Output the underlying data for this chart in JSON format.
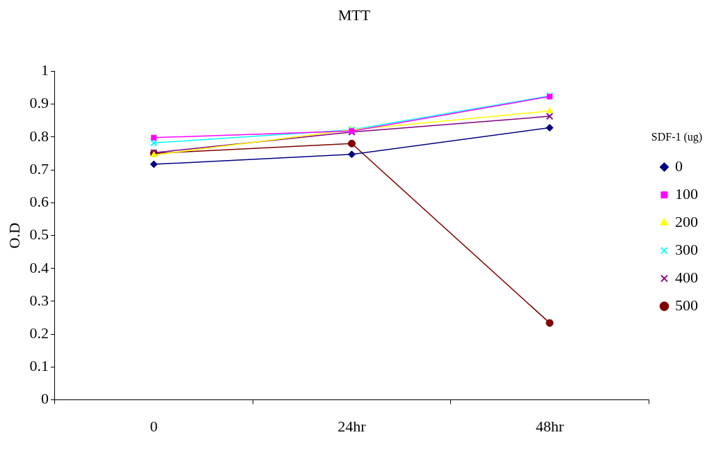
{
  "chart_data": {
    "type": "line",
    "title": "MTT",
    "ylabel": "O.D",
    "legend_title": "SDF-1 (ug)",
    "categories": [
      "0",
      "24hr",
      "48hr"
    ],
    "ylim": [
      0,
      1
    ],
    "yticks": [
      0,
      0.1,
      0.2,
      0.3,
      0.4,
      0.5,
      0.6,
      0.7,
      0.8,
      0.9,
      1
    ],
    "grid": false,
    "legend": "right",
    "line_style": "solid",
    "series": [
      {
        "name": "0",
        "color": "#000080",
        "marker": "diamond",
        "values": [
          0.717,
          0.747,
          0.828
        ]
      },
      {
        "name": "100",
        "color": "#ff00ff",
        "marker": "square",
        "values": [
          0.798,
          0.818,
          0.923
        ]
      },
      {
        "name": "200",
        "color": "#ffff00",
        "marker": "triangle",
        "values": [
          0.745,
          0.822,
          0.879
        ]
      },
      {
        "name": "300",
        "color": "#00ffff",
        "marker": "cross",
        "values": [
          0.782,
          0.822,
          0.925
        ]
      },
      {
        "name": "400",
        "color": "#800080",
        "marker": "cross",
        "values": [
          0.752,
          0.815,
          0.863
        ]
      },
      {
        "name": "500",
        "color": "#800000",
        "marker": "circle",
        "values": [
          0.75,
          0.78,
          0.234
        ]
      }
    ]
  }
}
